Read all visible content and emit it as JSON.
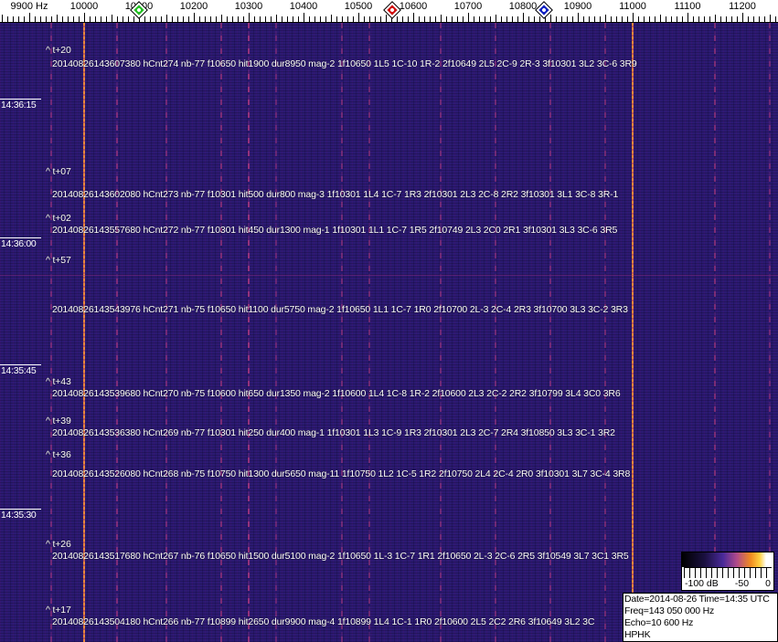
{
  "axis": {
    "freq_labels": [
      "9900 Hz",
      "10000",
      "10100",
      "10200",
      "10300",
      "10400",
      "10500",
      "10600",
      "10700",
      "10800",
      "10900",
      "11000",
      "11100",
      "11200"
    ],
    "freq_values": [
      9900,
      10000,
      10100,
      10200,
      10300,
      10400,
      10500,
      10600,
      10700,
      10800,
      10900,
      11000,
      11100,
      11200
    ]
  },
  "markers": [
    {
      "name": "green-marker",
      "freq_hz": 10100,
      "color": "#22c022"
    },
    {
      "name": "red-marker",
      "freq_hz": 10562,
      "color": "#d01010"
    },
    {
      "name": "blue-marker",
      "freq_hz": 10838,
      "color": "#1020c0"
    }
  ],
  "signal_lines_hz": [
    {
      "f": 10000,
      "strength": 1.0
    },
    {
      "f": 11000,
      "strength": 1.0
    },
    {
      "f": 9940,
      "strength": 0.3
    },
    {
      "f": 10060,
      "strength": 0.35
    },
    {
      "f": 10150,
      "strength": 0.3
    },
    {
      "f": 10250,
      "strength": 0.35
    },
    {
      "f": 10300,
      "strength": 0.45
    },
    {
      "f": 10350,
      "strength": 0.25
    },
    {
      "f": 10470,
      "strength": 0.3
    },
    {
      "f": 10520,
      "strength": 0.3
    },
    {
      "f": 10650,
      "strength": 0.3
    },
    {
      "f": 10750,
      "strength": 0.3
    },
    {
      "f": 10850,
      "strength": 0.3
    },
    {
      "f": 10950,
      "strength": 0.3
    },
    {
      "f": 11150,
      "strength": 0.35
    },
    {
      "f": 11250,
      "strength": 0.3
    }
  ],
  "colors": {
    "strong_signal": "#e8883a",
    "background": "#2b1a72"
  },
  "time_labels": [
    "14:36:15",
    "14:36:00",
    "14:35:45",
    "14:35:30"
  ],
  "detections": [
    {
      "offset": "^ t+20",
      "line": "20140826143607380 hCnt274 nb-77 f10650 hit1900 dur8950 mag-2 1f10650 1L5 1C-10 1R-2 2f10649 2L5 2C-9 2R-3 3f10301 3L2 3C-6 3R9"
    },
    {
      "offset": "^ t+07",
      "line": "20140826143602080 hCnt273 nb-77 f10301 hit500 dur800 mag-3 1f10301 1L4 1C-7 1R3 2f10301 2L3 2C-8 2R2 3f10301 3L1 3C-8 3R-1"
    },
    {
      "offset": "^ t+02",
      "line": "20140826143557680 hCnt272 nb-77 f10301 hit450 dur1300 mag-1 1f10301 1L1 1C-7 1R5 2f10749 2L3 2C0 2R1 3f10301 3L3 3C-6 3R5"
    },
    {
      "offset": "^ t+57",
      "line": "20140826143543976 hCnt271 nb-75 f10650 hit1100 dur5750 mag-2 1f10650 1L1 1C-7 1R0 2f10700 2L-3 2C-4 2R3 3f10700 3L3 3C-2 3R3"
    },
    {
      "offset": "^ t+43",
      "line": "20140826143539680 hCnt270 nb-75 f10600 hit650 dur1350 mag-2 1f10600 1L4 1C-8 1R-2 2f10600 2L3 2C-2 2R2 3f10799 3L4 3C0 3R6"
    },
    {
      "offset": "^ t+39",
      "line": "20140826143536380 hCnt269 nb-77 f10301 hit250 dur400 mag-1 1f10301 1L3 1C-9 1R3 2f10301 2L3 2C-7 2R4 3f10850 3L3 3C-1 3R2"
    },
    {
      "offset": "^ t+36",
      "line": "20140826143526080 hCnt268 nb-75 f10750 hit1300 dur5650 mag-11 1f10750 1L2 1C-5 1R2 2f10750 2L4 2C-4 2R0 3f10301 3L7 3C-4 3R8"
    },
    {
      "offset": "^ t+26",
      "line": "20140826143517680 hCnt267 nb-76 f10650 hit1500 dur5100 mag-2 1f10650 1L-3 1C-7 1R1 2f10650 2L-3 2C-6 2R5 3f10549 3L7 3C1 3R5"
    },
    {
      "offset": "^ t+17",
      "line": "20140826143504180 hCnt266 nb-77 f10899 hit2650 dur9900 mag-4 1f10899 1L4 1C-1 1R0 2f10600 2L5 2C2 2R6 3f10649 3L2 3C"
    }
  ],
  "colorbar": {
    "labels": [
      "-100 dB",
      "-50",
      "0"
    ]
  },
  "info": {
    "date_time": "Date=2014-08-26 Time=14:35 UTC",
    "freq": "Freq=143 050 000 Hz",
    "echo": "Echo=10 600 Hz",
    "station": "HPHK"
  }
}
